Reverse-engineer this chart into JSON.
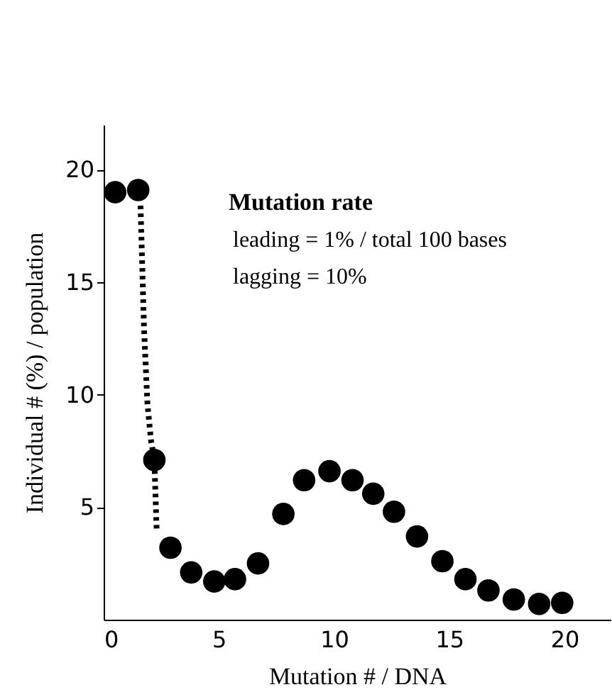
{
  "chart_data": {
    "type": "scatter",
    "xlabel": "Mutation # / DNA",
    "ylabel": "Individual # (%) / population",
    "xlim": [
      0,
      22
    ],
    "ylim": [
      0,
      22
    ],
    "xticks": [
      0,
      5,
      10,
      15,
      20
    ],
    "yticks": [
      5,
      10,
      15,
      20
    ],
    "grid": false,
    "annotations": [
      "Mutation rate",
      "leading = 1% / total 100 bases",
      "lagging = 10%"
    ],
    "series": [
      {
        "marker": "circle",
        "color": "#000000",
        "x": [
          0.5,
          1.5,
          2.2,
          2.9,
          3.8,
          4.8,
          5.7,
          6.7,
          7.8,
          8.7,
          9.8,
          10.8,
          11.7,
          12.6,
          13.6,
          14.7,
          15.7,
          16.7,
          17.8,
          18.9,
          19.9
        ],
        "values": [
          19.0,
          19.1,
          7.1,
          3.2,
          2.1,
          1.7,
          1.8,
          2.5,
          4.7,
          6.2,
          6.6,
          6.2,
          5.6,
          4.8,
          3.7,
          2.6,
          1.8,
          1.3,
          0.9,
          0.7,
          0.75
        ]
      },
      {
        "type": "line",
        "marker": "none",
        "line_style": "dotted",
        "color": "#000000",
        "x": [
          1.6,
          1.75,
          1.9,
          2.05,
          2.2,
          2.3
        ],
        "values": [
          18.4,
          13.0,
          9.6,
          8.0,
          7.1,
          4.0
        ]
      }
    ]
  }
}
